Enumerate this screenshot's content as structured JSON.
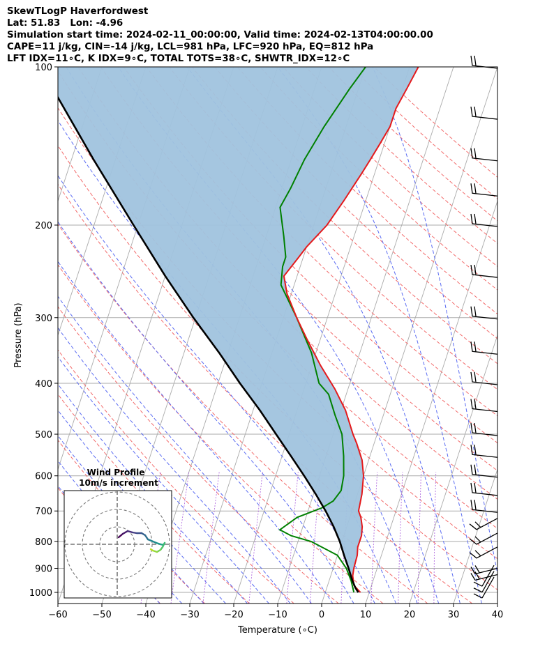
{
  "header": {
    "line1": "SkewTLogP Haverfordwest",
    "line2": "Lat: 51.83   Lon: -4.96",
    "line3": "Simulation start time: 2024-02-11_00:00:00, Valid time: 2024-02-13T04:00:00.00",
    "line4": "CAPE=11 j/kg, CIN=-14 j/kg, LCL=981 hPa, LFC=920 hPa, EQ=812 hPa",
    "line5": "LFT IDX=11∘C, K IDX=9∘C, TOTAL TOTS=38∘C, SHWTR_IDX=12∘C"
  },
  "chart_data": {
    "type": "line",
    "xlabel": "Temperature (∘C)",
    "ylabel": "Pressure (hPa)",
    "xlim": [
      -60,
      40
    ],
    "ylim": [
      1050,
      100
    ],
    "yscale": "log",
    "grid": true,
    "xticks": [
      "−60",
      "−50",
      "−40",
      "−30",
      "−20",
      "−10",
      "0",
      "10",
      "20",
      "30",
      "40"
    ],
    "yticks": [
      {
        "p": 100,
        "label": "100"
      },
      {
        "p": 200,
        "label": "200"
      },
      {
        "p": 300,
        "label": "300"
      },
      {
        "p": 400,
        "label": "400"
      },
      {
        "p": 500,
        "label": "500"
      },
      {
        "p": 600,
        "label": "600"
      },
      {
        "p": 700,
        "label": "700"
      },
      {
        "p": 800,
        "label": "800"
      },
      {
        "p": 900,
        "label": "900"
      },
      {
        "p": 1000,
        "label": "1000"
      }
    ],
    "series": [
      {
        "role": "temperature",
        "color": "#e41a1c",
        "points": [
          [
            1000,
            8
          ],
          [
            970,
            6
          ],
          [
            930,
            5
          ],
          [
            900,
            4.7
          ],
          [
            850,
            4.5
          ],
          [
            820,
            4
          ],
          [
            780,
            4
          ],
          [
            750,
            3.5
          ],
          [
            720,
            2.5
          ],
          [
            700,
            1.5
          ],
          [
            680,
            1.3
          ],
          [
            650,
            1
          ],
          [
            600,
            0
          ],
          [
            560,
            -1.5
          ],
          [
            520,
            -4
          ],
          [
            500,
            -5.5
          ],
          [
            450,
            -9
          ],
          [
            410,
            -13
          ],
          [
            370,
            -18
          ],
          [
            330,
            -23
          ],
          [
            300,
            -27
          ],
          [
            270,
            -31
          ],
          [
            250,
            -33
          ],
          [
            230,
            -31
          ],
          [
            220,
            -30
          ],
          [
            200,
            -27
          ],
          [
            180,
            -25
          ],
          [
            160,
            -23
          ],
          [
            150,
            -22
          ],
          [
            140,
            -21
          ],
          [
            130,
            -20
          ],
          [
            120,
            -20
          ],
          [
            110,
            -19
          ],
          [
            100,
            -18
          ]
        ]
      },
      {
        "role": "dewpoint",
        "color": "#008000",
        "points": [
          [
            1000,
            6.5
          ],
          [
            950,
            5
          ],
          [
            900,
            3
          ],
          [
            850,
            0
          ],
          [
            800,
            -7
          ],
          [
            780,
            -12
          ],
          [
            760,
            -15
          ],
          [
            720,
            -12
          ],
          [
            690,
            -7
          ],
          [
            670,
            -5
          ],
          [
            640,
            -4
          ],
          [
            600,
            -4.5
          ],
          [
            550,
            -6
          ],
          [
            500,
            -8
          ],
          [
            460,
            -11
          ],
          [
            420,
            -14
          ],
          [
            400,
            -17
          ],
          [
            350,
            -21
          ],
          [
            300,
            -27
          ],
          [
            260,
            -33
          ],
          [
            240,
            -34
          ],
          [
            230,
            -34
          ],
          [
            210,
            -36
          ],
          [
            185,
            -39
          ],
          [
            170,
            -38
          ],
          [
            150,
            -37
          ],
          [
            130,
            -35
          ],
          [
            110,
            -32
          ],
          [
            100,
            -30
          ]
        ]
      },
      {
        "role": "parcel",
        "color": "#000000",
        "points": [
          [
            1000,
            7.5
          ],
          [
            980,
            6.5
          ],
          [
            950,
            5.3
          ],
          [
            900,
            3.5
          ],
          [
            850,
            1.5
          ],
          [
            800,
            -0.5
          ],
          [
            750,
            -3
          ],
          [
            700,
            -6
          ],
          [
            650,
            -9.5
          ],
          [
            600,
            -13.5
          ],
          [
            550,
            -18
          ],
          [
            500,
            -23
          ],
          [
            450,
            -28.5
          ],
          [
            400,
            -35
          ],
          [
            350,
            -42
          ],
          [
            300,
            -50.5
          ],
          [
            250,
            -60
          ],
          [
            200,
            -71
          ],
          [
            150,
            -85
          ],
          [
            100,
            -104
          ]
        ]
      }
    ],
    "cape_fill": {
      "color": "#a0c3de"
    },
    "wind_barbs": {
      "pressures": [
        1000,
        975,
        950,
        925,
        900,
        850,
        800,
        750,
        700,
        650,
        600,
        550,
        500,
        450,
        400,
        350,
        300,
        250,
        200,
        175,
        150,
        125,
        100
      ]
    },
    "hodograph": {
      "title": "Wind Profile",
      "subtitle": "10m/s increment"
    }
  }
}
